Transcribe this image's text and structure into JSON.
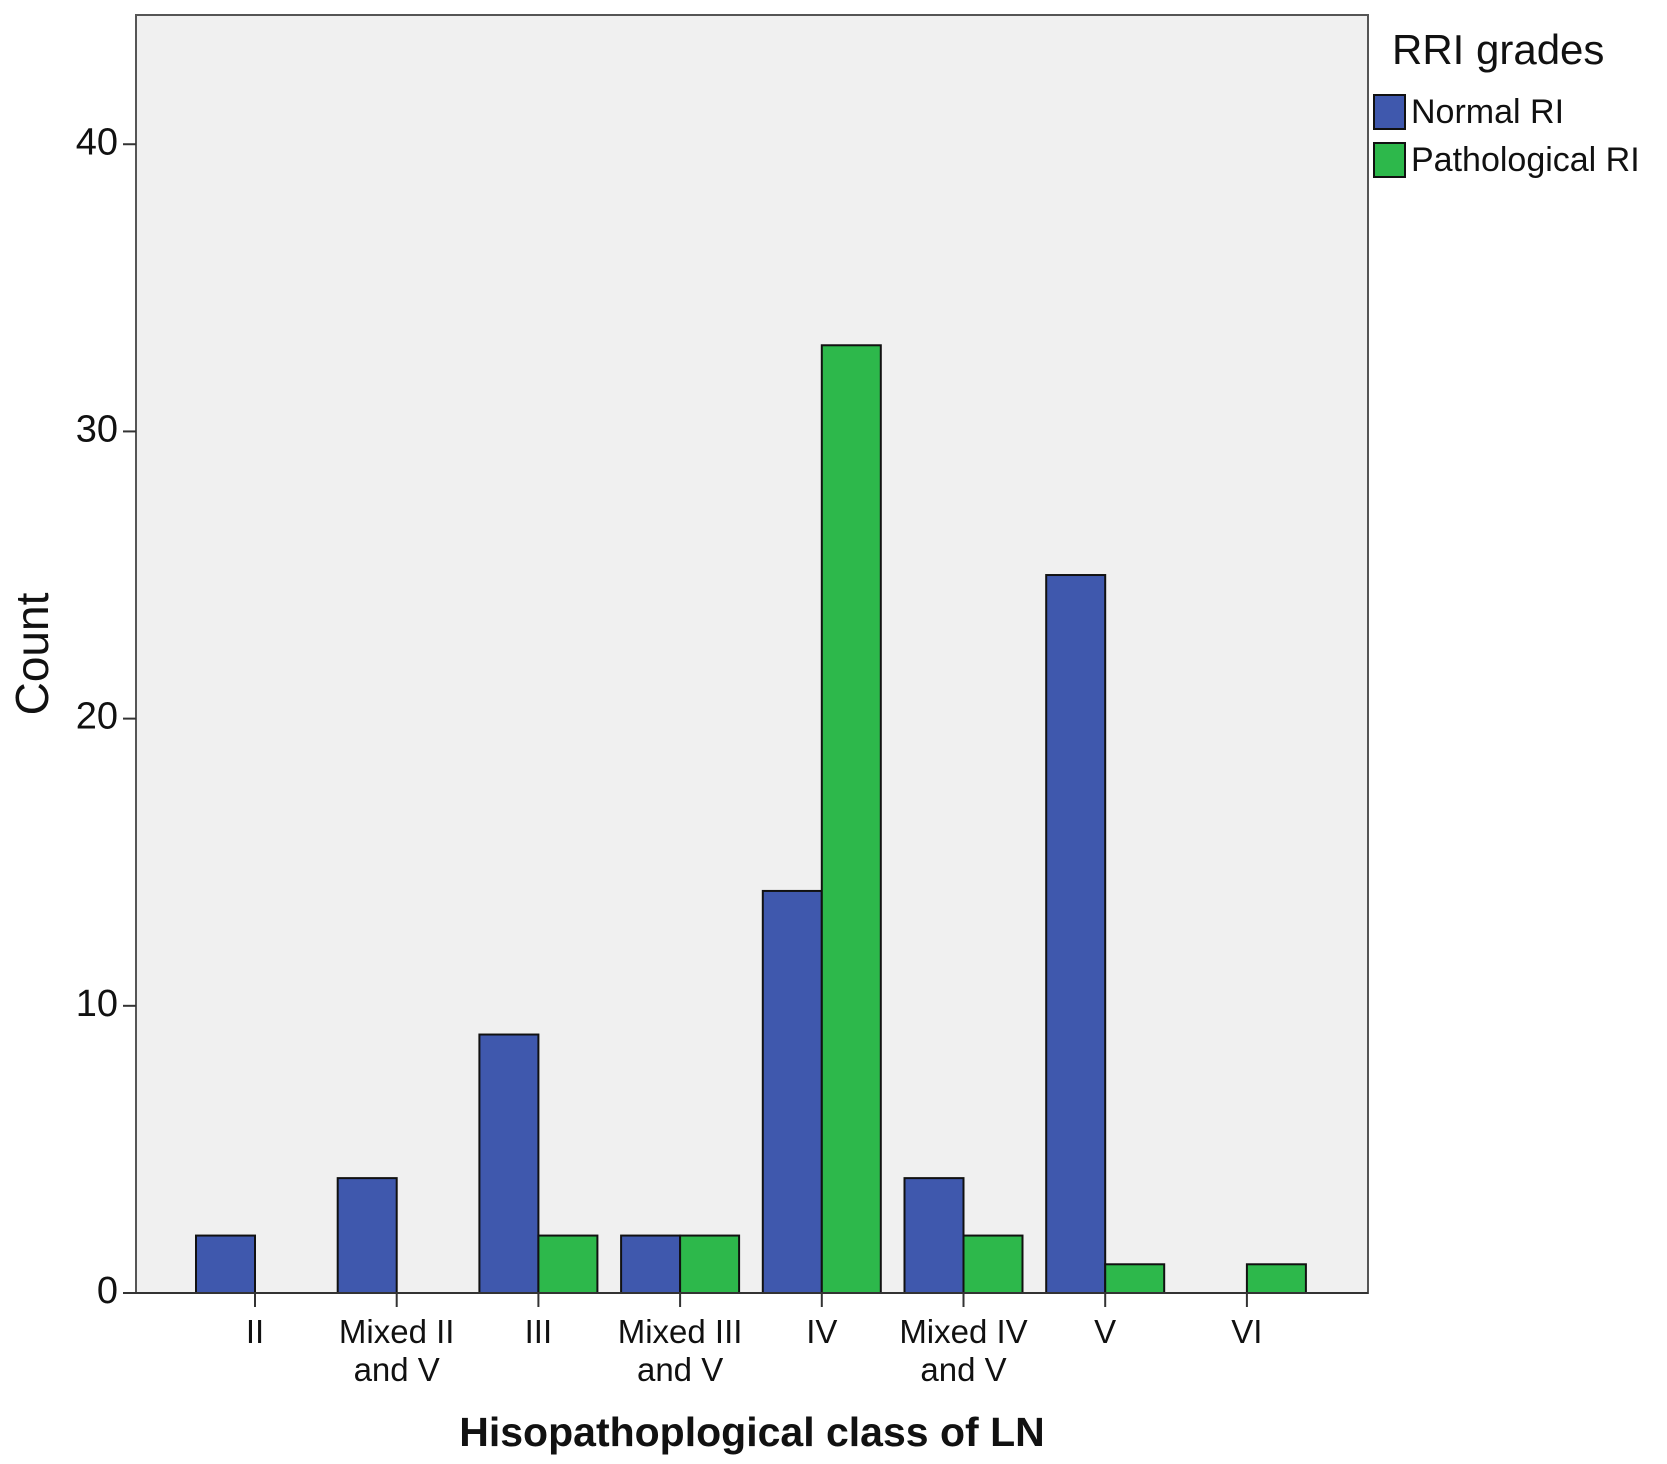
{
  "chart_data": {
    "type": "bar",
    "x_label": "Hisopathoplogical class of LN",
    "y_label": "Count",
    "categories": [
      "II",
      "Mixed II and V",
      "III",
      "Mixed III and V",
      "IV",
      "Mixed IV and V",
      "V",
      "VI"
    ],
    "series": [
      {
        "name": "Normal RI",
        "color": "#3f58ad",
        "values": [
          2,
          4,
          9,
          2,
          14,
          4,
          25,
          0
        ]
      },
      {
        "name": "Pathological RI",
        "color": "#2db84b",
        "values": [
          0,
          0,
          2,
          2,
          33,
          2,
          1,
          1
        ]
      }
    ],
    "legend_title": "RRI grades",
    "legend": "right",
    "ylim": [
      0,
      44.5
    ],
    "yticks": [
      0,
      10,
      20,
      30,
      40
    ],
    "grid": false
  }
}
